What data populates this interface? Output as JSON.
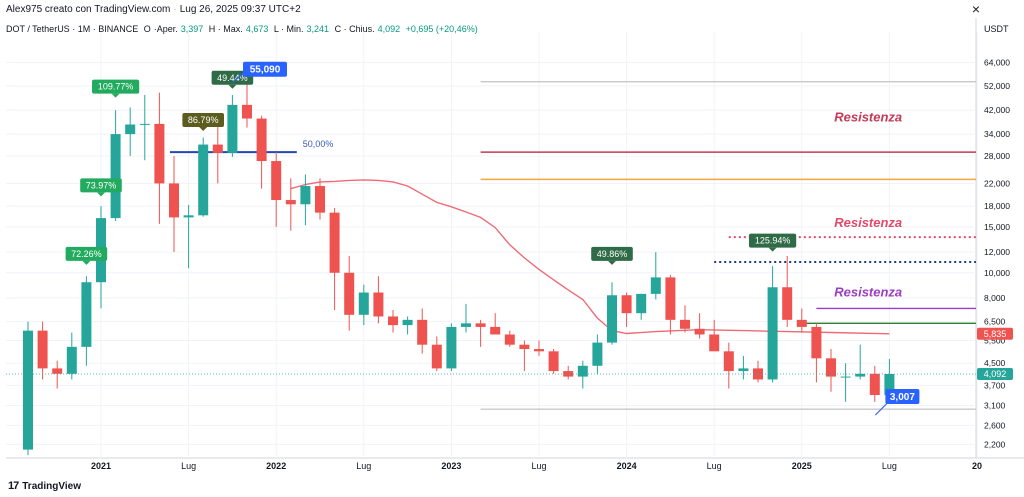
{
  "header": {
    "author": "Alex975 creato con TradingView.com",
    "timestamp": "Lug 26, 2025 09:37 UTC+2"
  },
  "infobar": {
    "symbol": "DOT / TetherUS · 1M · BINANCE",
    "open_label": "O",
    "open_text": "Aper.",
    "open_value": "3,397",
    "high_text": "H · Max.",
    "high_value": "4,673",
    "low_text": "L · Min.",
    "low_value": "3,241",
    "close_text": "C · Chius.",
    "close_value": "4,092",
    "change": "+0,695 (+20,46%)"
  },
  "footer": {
    "brand": "TradingView",
    "logo": "17"
  },
  "colors": {
    "up": "#26a69a",
    "down": "#ef5350",
    "ma": "#f06a75",
    "resist_red": "#e24a6b",
    "resist_purple": "#9c3cc2",
    "blue": "#2962ff",
    "fib": "#3a57c4"
  },
  "chart_data": {
    "type": "candlestick",
    "currency": "USDT",
    "y_scale": "log",
    "ylim": [
      1.95,
      78
    ],
    "y_ticks": [
      2.2,
      2.6,
      3.1,
      3.7,
      4.5,
      5.5,
      6.5,
      8.0,
      10.0,
      12.0,
      15.0,
      18.0,
      22.0,
      28.0,
      34.0,
      42.0,
      52.0,
      64.0
    ],
    "y_tick_labels": [
      "2,200",
      "2,600",
      "3,100",
      "3,700",
      "4,500",
      "5,500",
      "6,500",
      "8,000",
      "10,000",
      "12,000",
      "15,000",
      "18,000",
      "22,000",
      "28,000",
      "34,000",
      "42,000",
      "52,000",
      "64,000"
    ],
    "x_labels": [
      {
        "label": "2021",
        "month": "2021-01",
        "bold": true
      },
      {
        "label": "Lug",
        "month": "2021-07",
        "bold": false
      },
      {
        "label": "2022",
        "month": "2022-01",
        "bold": true
      },
      {
        "label": "Lug",
        "month": "2022-07",
        "bold": false
      },
      {
        "label": "2023",
        "month": "2023-01",
        "bold": true
      },
      {
        "label": "Lug",
        "month": "2023-07",
        "bold": false
      },
      {
        "label": "2024",
        "month": "2024-01",
        "bold": true
      },
      {
        "label": "Lug",
        "month": "2024-07",
        "bold": false
      },
      {
        "label": "2025",
        "month": "2025-01",
        "bold": true
      },
      {
        "label": "Lug",
        "month": "2025-07",
        "bold": false
      },
      {
        "label": "20",
        "month": "2026-01",
        "bold": true
      }
    ],
    "candles": [
      {
        "m": "2020-08",
        "o": 2.1,
        "h": 6.5,
        "l": 2.0,
        "c": 6.0
      },
      {
        "m": "2020-09",
        "o": 6.0,
        "h": 6.5,
        "l": 3.9,
        "c": 4.3
      },
      {
        "m": "2020-10",
        "o": 4.3,
        "h": 4.6,
        "l": 3.6,
        "c": 4.1
      },
      {
        "m": "2020-11",
        "o": 4.1,
        "h": 5.9,
        "l": 3.9,
        "c": 5.2
      },
      {
        "m": "2020-12",
        "o": 5.2,
        "h": 9.7,
        "l": 4.4,
        "c": 9.2
      },
      {
        "m": "2021-01",
        "o": 9.2,
        "h": 18.0,
        "l": 7.3,
        "c": 16.2
      },
      {
        "m": "2021-02",
        "o": 16.2,
        "h": 42.0,
        "l": 15.8,
        "c": 34.0
      },
      {
        "m": "2021-03",
        "o": 34.0,
        "h": 43.0,
        "l": 28.0,
        "c": 37.0
      },
      {
        "m": "2021-04",
        "o": 37.0,
        "h": 48.0,
        "l": 27.0,
        "c": 37.2
      },
      {
        "m": "2021-05",
        "o": 37.2,
        "h": 49.0,
        "l": 15.4,
        "c": 22.0
      },
      {
        "m": "2021-06",
        "o": 22.0,
        "h": 28.0,
        "l": 12.0,
        "c": 16.3
      },
      {
        "m": "2021-07",
        "o": 16.3,
        "h": 18.2,
        "l": 10.4,
        "c": 16.6
      },
      {
        "m": "2021-08",
        "o": 16.6,
        "h": 33.0,
        "l": 16.4,
        "c": 31.0
      },
      {
        "m": "2021-09",
        "o": 31.0,
        "h": 38.0,
        "l": 22.0,
        "c": 28.8
      },
      {
        "m": "2021-10",
        "o": 28.8,
        "h": 48.0,
        "l": 27.8,
        "c": 44.0
      },
      {
        "m": "2021-11",
        "o": 44.0,
        "h": 55.09,
        "l": 36.0,
        "c": 39.0
      },
      {
        "m": "2021-12",
        "o": 39.0,
        "h": 40.0,
        "l": 21.0,
        "c": 26.8
      },
      {
        "m": "2022-01",
        "o": 26.8,
        "h": 29.0,
        "l": 15.0,
        "c": 19.0
      },
      {
        "m": "2022-02",
        "o": 19.0,
        "h": 23.0,
        "l": 14.5,
        "c": 18.3
      },
      {
        "m": "2022-03",
        "o": 18.3,
        "h": 23.8,
        "l": 15.2,
        "c": 21.5
      },
      {
        "m": "2022-04",
        "o": 21.5,
        "h": 23.0,
        "l": 16.0,
        "c": 17.0
      },
      {
        "m": "2022-05",
        "o": 17.0,
        "h": 17.7,
        "l": 7.2,
        "c": 10.0
      },
      {
        "m": "2022-06",
        "o": 10.0,
        "h": 11.6,
        "l": 6.0,
        "c": 6.9
      },
      {
        "m": "2022-07",
        "o": 6.9,
        "h": 9.0,
        "l": 6.3,
        "c": 8.4
      },
      {
        "m": "2022-08",
        "o": 8.4,
        "h": 9.7,
        "l": 6.4,
        "c": 6.8
      },
      {
        "m": "2022-09",
        "o": 6.8,
        "h": 7.2,
        "l": 5.9,
        "c": 6.3
      },
      {
        "m": "2022-10",
        "o": 6.3,
        "h": 6.8,
        "l": 5.8,
        "c": 6.6
      },
      {
        "m": "2022-11",
        "o": 6.6,
        "h": 7.3,
        "l": 4.9,
        "c": 5.3
      },
      {
        "m": "2022-12",
        "o": 5.3,
        "h": 5.7,
        "l": 4.2,
        "c": 4.3
      },
      {
        "m": "2023-01",
        "o": 4.3,
        "h": 6.4,
        "l": 4.2,
        "c": 6.2
      },
      {
        "m": "2023-02",
        "o": 6.2,
        "h": 7.6,
        "l": 5.9,
        "c": 6.4
      },
      {
        "m": "2023-03",
        "o": 6.4,
        "h": 6.6,
        "l": 5.2,
        "c": 6.2
      },
      {
        "m": "2023-04",
        "o": 6.2,
        "h": 7.0,
        "l": 5.9,
        "c": 5.8
      },
      {
        "m": "2023-05",
        "o": 5.8,
        "h": 6.0,
        "l": 5.2,
        "c": 5.3
      },
      {
        "m": "2023-06",
        "o": 5.3,
        "h": 5.5,
        "l": 4.2,
        "c": 5.1
      },
      {
        "m": "2023-07",
        "o": 5.1,
        "h": 5.5,
        "l": 4.8,
        "c": 5.0
      },
      {
        "m": "2023-08",
        "o": 5.0,
        "h": 5.1,
        "l": 4.1,
        "c": 4.2
      },
      {
        "m": "2023-09",
        "o": 4.2,
        "h": 4.4,
        "l": 3.9,
        "c": 4.0
      },
      {
        "m": "2023-10",
        "o": 4.0,
        "h": 4.6,
        "l": 3.6,
        "c": 4.4
      },
      {
        "m": "2023-11",
        "o": 4.4,
        "h": 5.8,
        "l": 4.1,
        "c": 5.4
      },
      {
        "m": "2023-12",
        "o": 5.4,
        "h": 9.2,
        "l": 5.3,
        "c": 8.2
      },
      {
        "m": "2024-01",
        "o": 8.2,
        "h": 8.4,
        "l": 6.2,
        "c": 7.0
      },
      {
        "m": "2024-02",
        "o": 7.0,
        "h": 8.3,
        "l": 6.6,
        "c": 8.3
      },
      {
        "m": "2024-03",
        "o": 8.3,
        "h": 12.0,
        "l": 7.9,
        "c": 9.6
      },
      {
        "m": "2024-04",
        "o": 9.6,
        "h": 9.8,
        "l": 5.8,
        "c": 6.6
      },
      {
        "m": "2024-05",
        "o": 6.6,
        "h": 7.5,
        "l": 5.9,
        "c": 6.1
      },
      {
        "m": "2024-06",
        "o": 6.1,
        "h": 7.0,
        "l": 5.6,
        "c": 5.8
      },
      {
        "m": "2024-07",
        "o": 5.8,
        "h": 6.6,
        "l": 5.2,
        "c": 5.0
      },
      {
        "m": "2024-08",
        "o": 5.0,
        "h": 5.4,
        "l": 3.6,
        "c": 4.2
      },
      {
        "m": "2024-09",
        "o": 4.2,
        "h": 4.8,
        "l": 3.9,
        "c": 4.3
      },
      {
        "m": "2024-10",
        "o": 4.3,
        "h": 4.6,
        "l": 3.8,
        "c": 3.9
      },
      {
        "m": "2024-11",
        "o": 3.9,
        "h": 10.6,
        "l": 3.8,
        "c": 8.8
      },
      {
        "m": "2024-12",
        "o": 8.8,
        "h": 11.6,
        "l": 6.2,
        "c": 6.6
      },
      {
        "m": "2025-01",
        "o": 6.6,
        "h": 7.3,
        "l": 5.9,
        "c": 6.2
      },
      {
        "m": "2025-02",
        "o": 6.2,
        "h": 6.4,
        "l": 3.8,
        "c": 4.7
      },
      {
        "m": "2025-03",
        "o": 4.7,
        "h": 5.1,
        "l": 3.5,
        "c": 4.0
      },
      {
        "m": "2025-04",
        "o": 4.0,
        "h": 4.5,
        "l": 3.2,
        "c": 4.0
      },
      {
        "m": "2025-05",
        "o": 4.0,
        "h": 5.3,
        "l": 3.9,
        "c": 4.1
      },
      {
        "m": "2025-06",
        "o": 4.1,
        "h": 4.4,
        "l": 3.2,
        "c": 3.4
      },
      {
        "m": "2025-07",
        "o": 3.397,
        "h": 4.673,
        "l": 3.241,
        "c": 4.092
      }
    ],
    "moving_average": [
      {
        "m": "2022-02",
        "v": 21.0
      },
      {
        "m": "2022-03",
        "v": 21.8
      },
      {
        "m": "2022-04",
        "v": 22.3
      },
      {
        "m": "2022-05",
        "v": 22.4
      },
      {
        "m": "2022-06",
        "v": 22.6
      },
      {
        "m": "2022-07",
        "v": 22.7
      },
      {
        "m": "2022-08",
        "v": 22.6
      },
      {
        "m": "2022-09",
        "v": 22.3
      },
      {
        "m": "2022-10",
        "v": 21.5
      },
      {
        "m": "2022-11",
        "v": 20.0
      },
      {
        "m": "2022-12",
        "v": 18.6
      },
      {
        "m": "2023-01",
        "v": 17.9
      },
      {
        "m": "2023-02",
        "v": 17.1
      },
      {
        "m": "2023-03",
        "v": 16.3
      },
      {
        "m": "2023-04",
        "v": 14.9
      },
      {
        "m": "2023-05",
        "v": 12.8
      },
      {
        "m": "2023-06",
        "v": 11.4
      },
      {
        "m": "2023-07",
        "v": 10.3
      },
      {
        "m": "2023-08",
        "v": 9.4
      },
      {
        "m": "2023-09",
        "v": 8.6
      },
      {
        "m": "2023-10",
        "v": 7.9
      },
      {
        "m": "2023-11",
        "v": 6.7
      },
      {
        "m": "2023-12",
        "v": 6.0
      },
      {
        "m": "2024-01",
        "v": 5.85
      },
      {
        "m": "2024-03",
        "v": 5.95
      },
      {
        "m": "2024-06",
        "v": 6.05
      },
      {
        "m": "2024-09",
        "v": 6.0
      },
      {
        "m": "2024-12",
        "v": 5.95
      },
      {
        "m": "2025-03",
        "v": 5.9
      },
      {
        "m": "2025-07",
        "v": 5.835
      }
    ],
    "annotations": {
      "pct_labels": [
        {
          "text": "72.26%",
          "m": "2020-12",
          "v": 11.2,
          "color": "#22ab5e"
        },
        {
          "text": "73.97%",
          "m": "2021-01",
          "v": 20.5,
          "color": "#22ab5e"
        },
        {
          "text": "109.77%",
          "m": "2021-02",
          "v": 49.0,
          "color": "#22ab5e"
        },
        {
          "text": "86.79%",
          "m": "2021-08",
          "v": 36.5,
          "color": "#5c5c1e"
        },
        {
          "text": "49.44%",
          "m": "2021-10",
          "v": 53.0,
          "color": "#2f6b46"
        },
        {
          "text": "49.86%",
          "m": "2023-12",
          "v": 11.2,
          "color": "#2f6b46"
        },
        {
          "text": "125.94%",
          "m": "2024-11",
          "v": 12.6,
          "color": "#2f6b46"
        }
      ],
      "ath_label": {
        "text": "55,090",
        "m": "2021-11",
        "v": 60.0
      },
      "low_label": {
        "text": "3,007",
        "m": "2025-07",
        "v": 3.4
      },
      "fib": {
        "text": "50,00%",
        "from": "2021-06",
        "to": "2022-02",
        "v": 29.0
      },
      "resistances": [
        {
          "text": "Resistenza",
          "v": 29.0,
          "from": "2023-03",
          "to": "2026-01",
          "color": "#c43858",
          "label_m": "2025-05",
          "label_v": 38.0
        },
        {
          "text": "",
          "v": 22.8,
          "from": "2023-03",
          "to": "2026-01",
          "color": "#f4a63c"
        },
        {
          "text": "",
          "v": 54.0,
          "from": "2023-03",
          "to": "2026-01",
          "color": "#c8c8c8"
        },
        {
          "text": "Resistenza",
          "v": 13.7,
          "from": "2024-08",
          "to": "2026-01",
          "color": "#e24a6b",
          "dotted": true,
          "label_m": "2025-05",
          "label_v": 15.0
        },
        {
          "text": "",
          "v": 11.0,
          "from": "2024-07",
          "to": "2026-01",
          "color": "#1c3d8a",
          "dotted": true
        },
        {
          "text": "Resistenza",
          "v": 7.3,
          "from": "2025-02",
          "to": "2026-01",
          "color": "#9c3cc2",
          "label_m": "2025-05",
          "label_v": 8.1
        },
        {
          "text": "",
          "v": 6.4,
          "from": "2025-01",
          "to": "2026-01",
          "color": "#2e7d32"
        },
        {
          "text": "",
          "v": 3.0,
          "from": "2023-03",
          "to": "2026-01",
          "color": "#c8c8c8"
        }
      ],
      "price_tags": [
        {
          "text": "5,835",
          "v": 5.835,
          "color": "#ef5350"
        },
        {
          "text": "4,092",
          "v": 4.092,
          "color": "#26a69a"
        }
      ]
    }
  }
}
